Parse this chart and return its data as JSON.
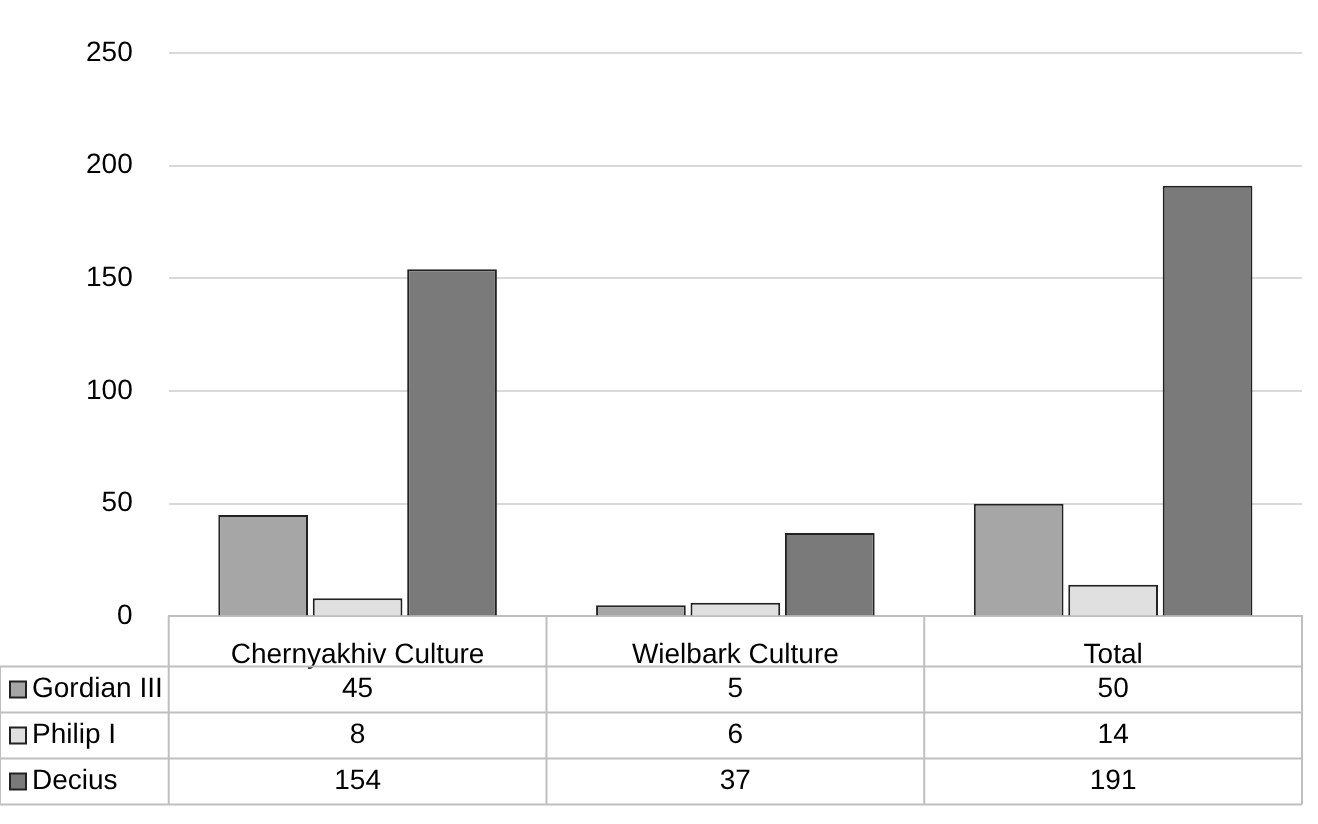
{
  "chart_data": {
    "type": "bar",
    "categories": [
      "Chernyakhiv Culture",
      "Wielbark Culture",
      "Total"
    ],
    "series": [
      {
        "name": "Gordian III",
        "color": "#a6a6a6",
        "values": [
          45,
          5,
          50
        ]
      },
      {
        "name": "Philip I",
        "color": "#e0e0e0",
        "values": [
          8,
          6,
          14
        ]
      },
      {
        "name": "Decius",
        "color": "#7a7a7a",
        "values": [
          154,
          37,
          191
        ]
      }
    ],
    "ylim": [
      0,
      250
    ],
    "yticks": [
      0,
      50,
      100,
      150,
      200,
      250
    ],
    "grid": "y",
    "legend": "bottom",
    "data_labels": true
  }
}
